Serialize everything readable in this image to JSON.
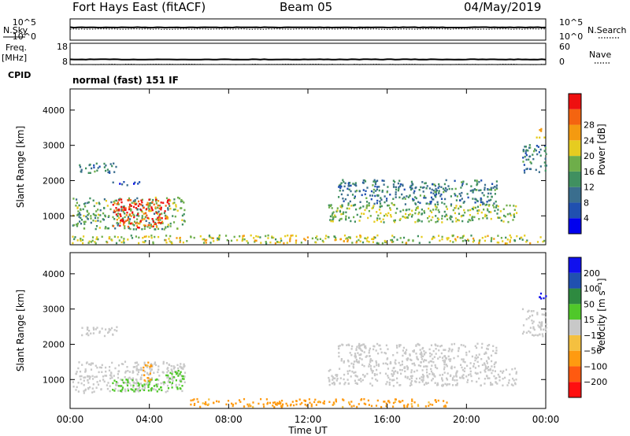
{
  "header": {
    "station": "Fort Hays East (fitACF)",
    "beam": "Beam 05",
    "date": "04/May/2019"
  },
  "left_labels": {
    "nsky": "N.Sky",
    "freq": "Freq.",
    "freq_unit": "[MHz]",
    "cpid": "CPID"
  },
  "right_labels": {
    "nsearch": "N.Search",
    "nave": "Nave"
  },
  "mode_text": "normal (fast) 151 IF",
  "colors": {
    "power": [
      "#0000ee",
      "#2050b0",
      "#3a6e8e",
      "#409060",
      "#6eae4a",
      "#e6cc20",
      "#f49a10",
      "#f46410",
      "#ee1010"
    ],
    "velocity": [
      "#ff1010",
      "#ff5a10",
      "#ff9a10",
      "#f4c040",
      "#c8c8c8",
      "#50c82a",
      "#2e8a40",
      "#2050b0",
      "#1010ee"
    ]
  },
  "chart_data": [
    {
      "type": "line",
      "panel": "noise",
      "series": [
        {
          "name": "N.Sky",
          "x": [
            "00:00",
            "24:00"
          ],
          "values": [
            3.0,
            3.0
          ]
        },
        {
          "name": "N.Search",
          "x": [
            "00:00",
            "24:00"
          ],
          "values": [
            2.6,
            2.6
          ]
        }
      ],
      "left_ticks": [
        "10^5",
        "10^0"
      ],
      "right_ticks": [
        "10^5",
        "10^0"
      ],
      "ylim": [
        0,
        5
      ]
    },
    {
      "type": "line",
      "panel": "frequency",
      "series": [
        {
          "name": "Freq.",
          "x": [
            "00:00",
            "24:00"
          ],
          "values": [
            10.4,
            10.4
          ]
        },
        {
          "name": "Nave",
          "x": [
            "00:00",
            "24:00"
          ],
          "values": [
            18,
            18
          ]
        }
      ],
      "left_ticks": [
        "18",
        "8"
      ],
      "right_ticks": [
        "60",
        "0"
      ],
      "ylim": [
        8,
        18
      ]
    },
    {
      "type": "heatmap",
      "panel": "power",
      "ylabel": "Slant Range [km]",
      "yticks": [
        "1000",
        "2000",
        "3000",
        "4000"
      ],
      "ylim": [
        180,
        4600
      ],
      "xlim": [
        0,
        24
      ],
      "colorbar": {
        "label": "Power [dB]",
        "ticks": [
          "4",
          "8",
          "12",
          "16",
          "20",
          "24",
          "28"
        ],
        "range": [
          0,
          32
        ]
      },
      "regions": [
        {
          "t": [
            0.1,
            5.8
          ],
          "r": [
            600,
            1500
          ],
          "level": 14
        },
        {
          "t": [
            2.1,
            5.0
          ],
          "r": [
            640,
            1450
          ],
          "level": 28
        },
        {
          "t": [
            0.4,
            2.4
          ],
          "r": [
            2200,
            2480
          ],
          "level": 10
        },
        {
          "t": [
            1.8,
            3.5
          ],
          "r": [
            1850,
            1950
          ],
          "level": 6
        },
        {
          "t": [
            0.0,
            23.9
          ],
          "r": [
            200,
            430
          ],
          "level": 18
        },
        {
          "t": [
            13.0,
            22.5
          ],
          "r": [
            800,
            1300
          ],
          "level": 16
        },
        {
          "t": [
            13.5,
            21.5
          ],
          "r": [
            1300,
            2000
          ],
          "level": 10
        },
        {
          "t": [
            22.8,
            24.0
          ],
          "r": [
            2200,
            3000
          ],
          "level": 10
        },
        {
          "t": [
            23.5,
            24.0
          ],
          "r": [
            3200,
            3450
          ],
          "level": 22
        }
      ]
    },
    {
      "type": "heatmap",
      "panel": "velocity",
      "ylabel": "Slant Range [km]",
      "xlabel": "Time UT",
      "xticks": [
        "00:00",
        "04:00",
        "08:00",
        "12:00",
        "16:00",
        "20:00",
        "00:00"
      ],
      "yticks": [
        "1000",
        "2000",
        "3000",
        "4000"
      ],
      "ylim": [
        180,
        4600
      ],
      "xlim": [
        0,
        24
      ],
      "colorbar": {
        "label": "Velocity [m s⁻¹]",
        "ticks": [
          "200",
          "100",
          "50",
          "15",
          "−15",
          "−50",
          "−100",
          "−200"
        ],
        "range": [
          -250,
          250
        ]
      },
      "regions": [
        {
          "t": [
            0.1,
            5.8
          ],
          "r": [
            600,
            1500
          ],
          "level": 0
        },
        {
          "t": [
            2.1,
            4.8
          ],
          "r": [
            640,
            1000
          ],
          "level": 30
        },
        {
          "t": [
            4.8,
            5.7
          ],
          "r": [
            700,
            1250
          ],
          "level": 30
        },
        {
          "t": [
            3.6,
            4.1
          ],
          "r": [
            900,
            1500
          ],
          "level": -60
        },
        {
          "t": [
            0.4,
            2.4
          ],
          "r": [
            2200,
            2480
          ],
          "level": 0
        },
        {
          "t": [
            6.0,
            19.0
          ],
          "r": [
            200,
            430
          ],
          "level": -60
        },
        {
          "t": [
            13.0,
            22.5
          ],
          "r": [
            800,
            1300
          ],
          "level": 0
        },
        {
          "t": [
            13.5,
            21.5
          ],
          "r": [
            1300,
            2000
          ],
          "level": 0
        },
        {
          "t": [
            22.8,
            24.0
          ],
          "r": [
            2200,
            3000
          ],
          "level": 0
        },
        {
          "t": [
            23.6,
            24.0
          ],
          "r": [
            3200,
            3450
          ],
          "level": 220
        }
      ]
    }
  ]
}
